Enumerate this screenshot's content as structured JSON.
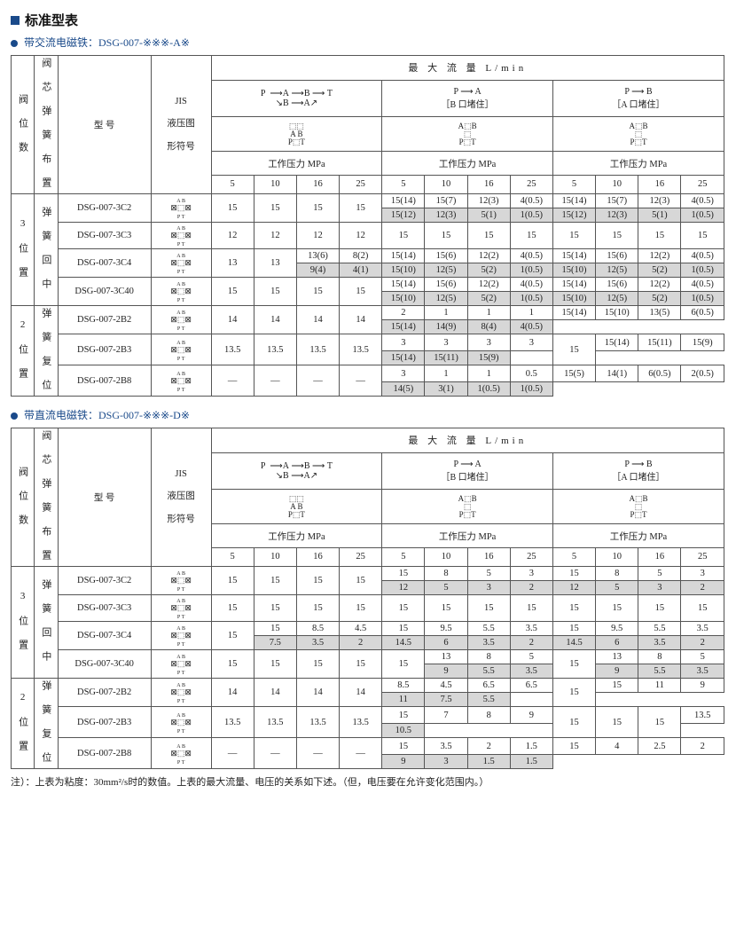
{
  "title": "标准型表",
  "section1": {
    "heading": "带交流电磁铁：DSG-007-※※※-A※",
    "top_header": "最  大  流  量   L/min",
    "flow_headers": {
      "pabt": "P ⟶ A ⟶ B ⟶ T  /  B ⟶ A",
      "pa": "P ⟶ A",
      "pa_sub": "［B 口堵住］",
      "pb": "P ⟶ B",
      "pb_sub": "［A 口堵住］"
    },
    "work_pressure": "工作压力  MPa",
    "pressures": [
      "5",
      "10",
      "16",
      "25"
    ],
    "col_labels": {
      "val_pos": "阀 位 数",
      "spring": "阀 芯 弹 簧 布 置",
      "model": "型  号",
      "jis": "JIS",
      "jis2": "液压图",
      "jis3": "形符号"
    },
    "groups": [
      {
        "pos": "3 位 置",
        "spring": "弹 簧 回 中",
        "rows": [
          {
            "model": "DSG-007-3C2",
            "sym": "3C2",
            "pabt": [
              "15",
              "15",
              "15",
              "15"
            ],
            "pa": [
              [
                "15(14)",
                "15(7)",
                "12(3)",
                "4(0.5)"
              ],
              [
                "15(12)",
                "12(3)",
                "5(1)",
                "1(0.5)"
              ]
            ],
            "pb": [
              [
                "15(14)",
                "15(7)",
                "12(3)",
                "4(0.5)"
              ],
              [
                "15(12)",
                "12(3)",
                "5(1)",
                "1(0.5)"
              ]
            ]
          },
          {
            "model": "DSG-007-3C3",
            "sym": "3C3",
            "pabt": [
              "12",
              "12",
              "12",
              "12"
            ],
            "pa": [
              [
                "15",
                "15",
                "15",
                "15"
              ]
            ],
            "pb": [
              [
                "15",
                "15",
                "15",
                "15"
              ]
            ]
          },
          {
            "model": "DSG-007-3C4",
            "sym": "3C4",
            "pabt_split": {
              "left": [
                "13",
                "13"
              ],
              "right": [
                [
                  "13(6)",
                  "8(2)"
                ],
                [
                  "9(4)",
                  "4(1)"
                ]
              ]
            },
            "pa": [
              [
                "15(14)",
                "15(6)",
                "12(2)",
                "4(0.5)"
              ],
              [
                "15(10)",
                "12(5)",
                "5(2)",
                "1(0.5)"
              ]
            ],
            "pb": [
              [
                "15(14)",
                "15(6)",
                "12(2)",
                "4(0.5)"
              ],
              [
                "15(10)",
                "12(5)",
                "5(2)",
                "1(0.5)"
              ]
            ]
          },
          {
            "model": "DSG-007-3C40",
            "sym": "3C40",
            "pabt": [
              "15",
              "15",
              "15",
              "15"
            ],
            "pa": [
              [
                "15(14)",
                "15(6)",
                "12(2)",
                "4(0.5)"
              ],
              [
                "15(10)",
                "12(5)",
                "5(2)",
                "1(0.5)"
              ]
            ],
            "pb": [
              [
                "15(14)",
                "15(6)",
                "12(2)",
                "4(0.5)"
              ],
              [
                "15(10)",
                "12(5)",
                "5(2)",
                "1(0.5)"
              ]
            ]
          }
        ]
      },
      {
        "pos": "2 位 置",
        "spring": "弹 簧 复 位",
        "rows": [
          {
            "model": "DSG-007-2B2",
            "sym": "2B2",
            "pabt": [
              "14",
              "14",
              "14",
              "14"
            ],
            "pa": [
              [
                "2",
                "1",
                "1",
                "1"
              ]
            ],
            "pb": [
              [
                "15(14)",
                "15(10)",
                "13(5)",
                "6(0.5)"
              ],
              [
                "15(14)",
                "14(9)",
                "8(4)",
                "4(0.5)"
              ]
            ]
          },
          {
            "model": "DSG-007-2B3",
            "sym": "2B3",
            "pabt": [
              "13.5",
              "13.5",
              "13.5",
              "13.5"
            ],
            "pa": [
              [
                "3",
                "3",
                "3",
                "3"
              ]
            ],
            "pb_left": "15",
            "pb": [
              [
                "15(14)",
                "15(11)",
                "15(9)"
              ],
              [
                "15(14)",
                "15(11)",
                "15(9)"
              ]
            ]
          },
          {
            "model": "DSG-007-2B8",
            "sym": "2B8",
            "pabt": [
              "—",
              "—",
              "—",
              "—"
            ],
            "pa": [
              [
                "3",
                "1",
                "1",
                "0.5"
              ]
            ],
            "pb": [
              [
                "15(5)",
                "14(1)",
                "6(0.5)",
                "2(0.5)"
              ],
              [
                "14(5)",
                "3(1)",
                "1(0.5)",
                "1(0.5)"
              ]
            ]
          }
        ]
      }
    ]
  },
  "section2": {
    "heading": "带直流电磁铁：DSG-007-※※※-D※",
    "groups": [
      {
        "pos": "3 位 置",
        "spring": "弹 簧 回 中",
        "rows": [
          {
            "model": "DSG-007-3C2",
            "sym": "3C2",
            "pabt": [
              "15",
              "15",
              "15",
              "15"
            ],
            "pa": [
              [
                "15",
                "8",
                "5",
                "3"
              ],
              [
                "12",
                "5",
                "3",
                "2"
              ]
            ],
            "pb": [
              [
                "15",
                "8",
                "5",
                "3"
              ],
              [
                "12",
                "5",
                "3",
                "2"
              ]
            ]
          },
          {
            "model": "DSG-007-3C3",
            "sym": "3C3",
            "pabt": [
              "15",
              "15",
              "15",
              "15"
            ],
            "pa": [
              [
                "15",
                "15",
                "15",
                "15"
              ]
            ],
            "pb": [
              [
                "15",
                "15",
                "15",
                "15"
              ]
            ]
          },
          {
            "model": "DSG-007-3C4",
            "sym": "3C4",
            "pabt_split": {
              "left": [
                "15"
              ],
              "right": [
                [
                  "15",
                  "8.5",
                  "4.5"
                ],
                [
                  "7.5",
                  "3.5",
                  "2"
                ]
              ]
            },
            "pa": [
              [
                "15",
                "9.5",
                "5.5",
                "3.5"
              ],
              [
                "14.5",
                "6",
                "3.5",
                "2"
              ]
            ],
            "pb": [
              [
                "15",
                "9.5",
                "5.5",
                "3.5"
              ],
              [
                "14.5",
                "6",
                "3.5",
                "2"
              ]
            ]
          },
          {
            "model": "DSG-007-3C40",
            "sym": "3C40",
            "pabt": [
              "15",
              "15",
              "15",
              "15"
            ],
            "pa_left": "15",
            "pa": [
              [
                "13",
                "8",
                "5"
              ],
              [
                "9",
                "5.5",
                "3.5"
              ]
            ],
            "pb_left": "15",
            "pb": [
              [
                "13",
                "8",
                "5"
              ],
              [
                "9",
                "5.5",
                "3.5"
              ]
            ]
          }
        ]
      },
      {
        "pos": "2 位 置",
        "spring": "弹 簧 复 位",
        "rows": [
          {
            "model": "DSG-007-2B2",
            "sym": "2B2",
            "pabt": [
              "14",
              "14",
              "14",
              "14"
            ],
            "pa": [
              [
                "8.5",
                "4.5",
                "6.5",
                "6.5"
              ]
            ],
            "pb_left": "15",
            "pb": [
              [
                "15",
                "11",
                "9"
              ],
              [
                "11",
                "7.5",
                "5.5"
              ]
            ]
          },
          {
            "model": "DSG-007-2B3",
            "sym": "2B3",
            "pabt": [
              "13.5",
              "13.5",
              "13.5",
              "13.5"
            ],
            "pa": [
              [
                "15",
                "7",
                "8",
                "9"
              ]
            ],
            "pb_left3": [
              "15",
              "15",
              "15"
            ],
            "pb": [
              [
                "13.5"
              ],
              [
                "10.5"
              ]
            ]
          },
          {
            "model": "DSG-007-2B8",
            "sym": "2B8",
            "pabt": [
              "—",
              "—",
              "—",
              "—"
            ],
            "pa": [
              [
                "15",
                "3.5",
                "2",
                "1.5"
              ]
            ],
            "pb": [
              [
                "15",
                "4",
                "2.5",
                "2"
              ],
              [
                "9",
                "3",
                "1.5",
                "1.5"
              ]
            ]
          }
        ]
      }
    ]
  },
  "footnote": "注）：上表为粘度：30mm²/s时的数值。上表的最大流量、电压的关系如下述。（但，电压要在允许变化范围内。）"
}
